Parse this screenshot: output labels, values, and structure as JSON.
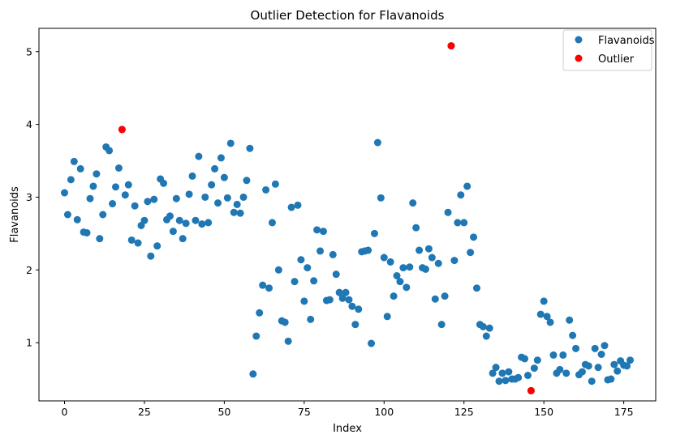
{
  "chart_data": {
    "type": "scatter",
    "title": "Outlier Detection for Flavanoids",
    "xlabel": "Index",
    "ylabel": "Flavanoids",
    "xlim": [
      -8,
      185
    ],
    "ylim": [
      0.2,
      5.32
    ],
    "xticks": [
      0,
      25,
      50,
      75,
      100,
      125,
      150,
      175
    ],
    "yticks": [
      1,
      2,
      3,
      4,
      5
    ],
    "grid": false,
    "legend": "top-right",
    "series": [
      {
        "name": "Flavanoids",
        "color": "#1f77b4",
        "y": [
          3.06,
          2.76,
          3.24,
          3.49,
          2.69,
          3.39,
          2.52,
          2.51,
          2.98,
          3.15,
          3.32,
          2.43,
          2.76,
          3.69,
          3.64,
          2.91,
          3.14,
          3.4,
          3.93,
          3.03,
          3.17,
          2.41,
          2.88,
          2.37,
          2.61,
          2.68,
          2.94,
          2.19,
          2.97,
          2.33,
          3.25,
          3.19,
          2.69,
          2.74,
          2.53,
          2.98,
          2.68,
          2.43,
          2.64,
          3.04,
          3.29,
          2.68,
          3.56,
          2.63,
          3.0,
          2.65,
          3.17,
          3.39,
          2.92,
          3.54,
          3.27,
          2.99,
          3.74,
          2.79,
          2.9,
          2.78,
          3.0,
          3.23,
          3.67,
          0.57,
          1.09,
          1.41,
          1.79,
          3.1,
          1.75,
          2.65,
          3.18,
          2.0,
          1.3,
          1.28,
          1.02,
          2.86,
          1.84,
          2.89,
          2.14,
          1.57,
          2.03,
          1.32,
          1.85,
          2.55,
          2.26,
          2.53,
          1.58,
          1.59,
          2.21,
          1.94,
          1.69,
          1.61,
          1.69,
          1.59,
          1.5,
          1.25,
          1.46,
          2.25,
          2.26,
          2.27,
          0.99,
          2.5,
          3.75,
          2.99,
          2.17,
          1.36,
          2.11,
          1.64,
          1.92,
          1.84,
          2.03,
          1.76,
          2.04,
          2.92,
          2.58,
          2.27,
          2.03,
          2.01,
          2.29,
          2.17,
          1.6,
          2.09,
          1.25,
          1.64,
          2.79,
          5.08,
          2.13,
          2.65,
          3.03,
          2.65,
          3.15,
          2.24,
          2.45,
          1.75,
          1.25,
          1.22,
          1.09,
          1.2,
          0.58,
          0.66,
          0.47,
          0.58,
          0.48,
          0.6,
          0.5,
          0.5,
          0.52,
          0.8,
          0.78,
          0.55,
          0.34,
          0.65,
          0.76,
          1.39,
          1.57,
          1.36,
          1.28,
          0.83,
          0.58,
          0.63,
          0.83,
          0.58,
          1.31,
          1.1,
          0.92,
          0.56,
          0.6,
          0.7,
          0.68,
          0.47,
          0.92,
          0.66,
          0.84,
          0.96,
          0.49,
          0.5,
          0.7,
          0.61,
          0.75,
          0.69,
          0.68,
          0.76
        ]
      },
      {
        "name": "Outlier",
        "color": "#ff0000",
        "points": [
          {
            "x": 18,
            "y": 3.93
          },
          {
            "x": 121,
            "y": 5.08
          },
          {
            "x": 146,
            "y": 0.34
          }
        ]
      }
    ]
  }
}
